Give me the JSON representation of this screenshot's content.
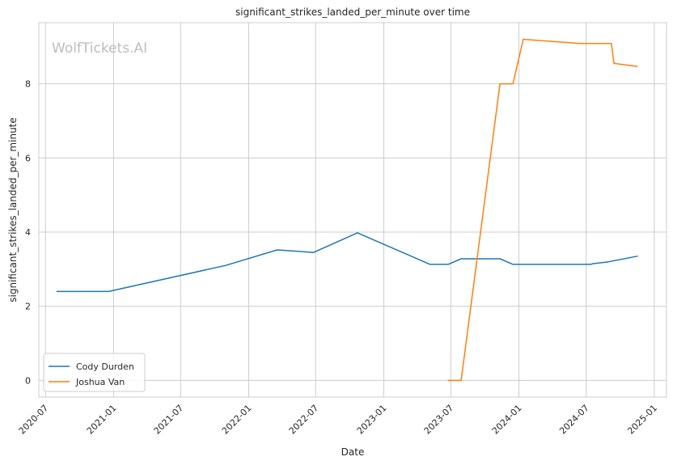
{
  "chart_data": {
    "type": "line",
    "title": "significant_strikes_landed_per_minute over time",
    "xlabel": "Date",
    "ylabel": "significant_strikes_landed_per_minute",
    "xlim": [
      "2020-06-13",
      "2025-02-03"
    ],
    "ylim": [
      -0.45,
      9.65
    ],
    "x_ticks": [
      "2020-07",
      "2021-01",
      "2021-07",
      "2022-01",
      "2022-07",
      "2023-01",
      "2023-07",
      "2024-01",
      "2024-07",
      "2025-01"
    ],
    "y_ticks": [
      0,
      2,
      4,
      6,
      8
    ],
    "grid": true,
    "legend_position": "lower-left",
    "watermark": "WolfTickets.AI",
    "series": [
      {
        "name": "Cody Durden",
        "color": "#1f77b4",
        "points": [
          {
            "x": "2020-08-01",
            "y": 2.4
          },
          {
            "x": "2020-12-19",
            "y": 2.4
          },
          {
            "x": "2021-10-30",
            "y": 3.1
          },
          {
            "x": "2022-03-19",
            "y": 3.52
          },
          {
            "x": "2022-06-25",
            "y": 3.45
          },
          {
            "x": "2022-10-22",
            "y": 3.98
          },
          {
            "x": "2023-05-06",
            "y": 3.13
          },
          {
            "x": "2023-06-24",
            "y": 3.13
          },
          {
            "x": "2023-07-29",
            "y": 3.28
          },
          {
            "x": "2023-11-11",
            "y": 3.28
          },
          {
            "x": "2023-12-16",
            "y": 3.13
          },
          {
            "x": "2024-07-13",
            "y": 3.13
          },
          {
            "x": "2024-07-20",
            "y": 3.15
          },
          {
            "x": "2024-08-31",
            "y": 3.2
          },
          {
            "x": "2024-11-16",
            "y": 3.35
          }
        ]
      },
      {
        "name": "Joshua Van",
        "color": "#ff7f0e",
        "points": [
          {
            "x": "2023-06-24",
            "y": 0
          },
          {
            "x": "2023-07-29",
            "y": 0
          },
          {
            "x": "2023-11-11",
            "y": 8.0
          },
          {
            "x": "2023-12-16",
            "y": 8.0
          },
          {
            "x": "2024-01-13",
            "y": 9.2
          },
          {
            "x": "2024-06-15",
            "y": 9.09
          },
          {
            "x": "2024-09-07",
            "y": 9.09
          },
          {
            "x": "2024-09-14",
            "y": 8.55
          },
          {
            "x": "2024-11-16",
            "y": 8.47
          }
        ]
      }
    ]
  }
}
